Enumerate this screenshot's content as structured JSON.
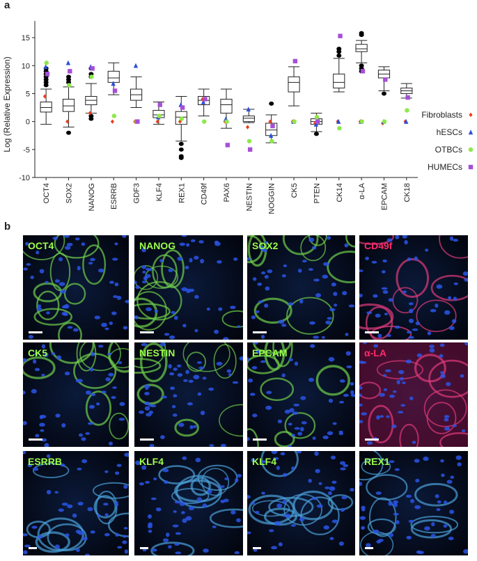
{
  "chart_data": {
    "type": "box",
    "panel_label": "a",
    "y_label": "Log (Relative Expression)",
    "categories": [
      "OCT4",
      "SOX2",
      "NANOG",
      "ESRRB",
      "GDF3",
      "KLF4",
      "REX1",
      "CD49f",
      "PAX6",
      "NESTIN",
      "NOGGIN",
      "CK5",
      "PTEN",
      "CK14",
      "α-LA",
      "EPCAM",
      "CK18"
    ],
    "boxes": [
      {
        "min": -0.5,
        "q1": 1.7,
        "median": 2.5,
        "q3": 3.5,
        "max": 5.8,
        "outliers": [
          6.5,
          7,
          7.5,
          8,
          8.5,
          9,
          9.5
        ]
      },
      {
        "min": -1,
        "q1": 1.8,
        "median": 2.8,
        "q3": 4,
        "max": 6.2,
        "outliers": [
          -2,
          7,
          7.5,
          8
        ]
      },
      {
        "min": 1.5,
        "q1": 3,
        "median": 3.8,
        "q3": 4.5,
        "max": 6.8,
        "outliers": [
          0.5,
          1,
          8,
          8.5,
          9.5
        ]
      },
      {
        "min": 4.8,
        "q1": 7,
        "median": 7.8,
        "q3": 9,
        "max": 10.5
      },
      {
        "min": 2.5,
        "q1": 3.8,
        "median": 4.8,
        "q3": 5.8,
        "max": 8
      },
      {
        "min": -0.5,
        "q1": 0.7,
        "median": 1.2,
        "q3": 2,
        "max": 3.5
      },
      {
        "min": -3.5,
        "q1": -0.5,
        "median": 0.8,
        "q3": 1.8,
        "max": 4.5,
        "outliers": [
          -4,
          -5,
          -6.2,
          -6.5
        ]
      },
      {
        "min": 1,
        "q1": 3,
        "median": 3.8,
        "q3": 4.5,
        "max": 5.8
      },
      {
        "min": -1.2,
        "q1": 1.5,
        "median": 3,
        "q3": 4,
        "max": 5.8
      },
      {
        "min": -0.2,
        "q1": 0,
        "median": 0.6,
        "q3": 1,
        "max": 2.2
      },
      {
        "min": -3.8,
        "q1": -2.5,
        "median": -1.5,
        "q3": -0.3,
        "max": 1.2,
        "outliers": [
          3.2
        ]
      },
      {
        "min": 2.8,
        "q1": 5.3,
        "median": 7,
        "q3": 8,
        "max": 9.8
      },
      {
        "min": -1.8,
        "q1": -0.5,
        "median": 0,
        "q3": 0.5,
        "max": 1.5,
        "outliers": [
          -2.2
        ]
      },
      {
        "min": 5.3,
        "q1": 6,
        "median": 7,
        "q3": 8.5,
        "max": 11.3,
        "outliers": [
          11.8,
          12.5,
          13
        ]
      },
      {
        "min": 10.5,
        "q1": 12.5,
        "median": 13,
        "q3": 13.8,
        "max": 14.5,
        "outliers": [
          9,
          9.5,
          10,
          15.5,
          15.8
        ]
      },
      {
        "min": 5.5,
        "q1": 7.8,
        "median": 8.5,
        "q3": 9.2,
        "max": 9.8,
        "outliers": [
          5
        ]
      },
      {
        "min": 4.2,
        "q1": 5,
        "median": 5.5,
        "q3": 6,
        "max": 6.8
      }
    ],
    "series": [
      {
        "name": "Fibroblasts",
        "color": "#e8401c",
        "marker": "diamond",
        "values": [
          4.5,
          0,
          1.5,
          0,
          0,
          0,
          0,
          4,
          0,
          -1,
          0,
          0,
          -0.3,
          0,
          0,
          -0.3,
          0
        ]
      },
      {
        "name": "hESCs",
        "color": "#2b4fd8",
        "marker": "triangle",
        "values": [
          9.8,
          10.5,
          9.8,
          6.8,
          10,
          0.8,
          3,
          3.5,
          0.5,
          2.2,
          -2.5,
          0,
          -0.5,
          0,
          0,
          0,
          0
        ]
      },
      {
        "name": "OTBCs",
        "color": "#8ee84a",
        "marker": "circle",
        "values": [
          10.5,
          6.5,
          8,
          1,
          0,
          1,
          0.5,
          0,
          0,
          -3.5,
          -3.5,
          0,
          0.8,
          -1.2,
          0,
          0,
          2
        ]
      },
      {
        "name": "HUMECs",
        "color": "#a64fd8",
        "marker": "square",
        "values": [
          8.5,
          9,
          9.5,
          5.5,
          0,
          3,
          2.5,
          4,
          -4.2,
          -5,
          -0.8,
          10.8,
          0,
          15.3,
          9,
          7.5,
          4.3
        ]
      }
    ],
    "ylim": [
      -10,
      18
    ],
    "yticks": [
      -10,
      -5,
      0,
      5,
      10,
      15
    ]
  },
  "panel_b": {
    "panel_label": "b",
    "tiles": [
      {
        "label": "OCT4",
        "color": "#9cff4a"
      },
      {
        "label": "NANOG",
        "color": "#9cff4a"
      },
      {
        "label": "SOX2",
        "color": "#9cff4a"
      },
      {
        "label": "CD49f",
        "color": "#ff2a6a"
      },
      {
        "label": "CK5",
        "color": "#9cff4a"
      },
      {
        "label": "NESTIN",
        "color": "#9cff4a"
      },
      {
        "label": "EPCAM",
        "color": "#9cff4a"
      },
      {
        "label": "α-LA",
        "color": "#ff2a6a"
      },
      {
        "label": "ESRRB",
        "color": "#9cff4a"
      },
      {
        "label": "KLF4",
        "color": "#9cff4a"
      },
      {
        "label": "KLF4",
        "color": "#9cff4a"
      },
      {
        "label": "REX1",
        "color": "#9cff4a"
      }
    ]
  }
}
